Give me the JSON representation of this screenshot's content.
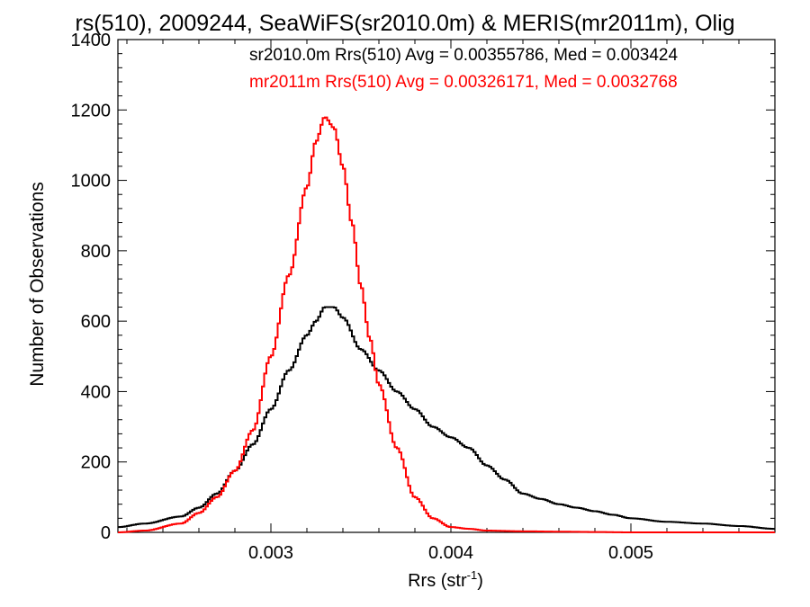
{
  "chart_data": {
    "type": "line",
    "title": "rs(510), 2009244, SeaWiFS(sr2010.0m) & MERIS(mr2011m), Olig",
    "xlabel": "Rrs (str",
    "xlabel_sup": "-1",
    "xlabel_end": ")",
    "ylabel": "Number of Observations",
    "xlim": [
      0.00215,
      0.0058
    ],
    "ylim": [
      0,
      1400
    ],
    "x_ticks": [
      0.003,
      0.004,
      0.005
    ],
    "x_tick_labels": [
      "0.003",
      "0.004",
      "0.005"
    ],
    "y_ticks": [
      0,
      200,
      400,
      600,
      800,
      1000,
      1200,
      1400
    ],
    "y_tick_labels": [
      "0",
      "200",
      "400",
      "600",
      "800",
      "1000",
      "1200",
      "1400"
    ],
    "legend_placement": "top-right",
    "annotations": [
      {
        "text": "sr2010.0m Rrs(510) Avg = 0.00355786, Med = 0.003424",
        "color": "#000000"
      },
      {
        "text": "mr2011m Rrs(510) Avg = 0.00326171, Med = 0.0032768",
        "color": "#ff0000"
      }
    ],
    "series": [
      {
        "name": "sr2010.0m Rrs(510)",
        "color": "#000000",
        "x": [
          0.00215,
          0.0023,
          0.0025,
          0.0026,
          0.0027,
          0.0028,
          0.0029,
          0.003,
          0.0031,
          0.0032,
          0.00325,
          0.0033,
          0.00335,
          0.0034,
          0.0035,
          0.0036,
          0.0037,
          0.0038,
          0.0039,
          0.004,
          0.0041,
          0.0042,
          0.0043,
          0.0044,
          0.0045,
          0.0046,
          0.0047,
          0.0048,
          0.0049,
          0.005,
          0.0052,
          0.0054,
          0.0056,
          0.0058
        ],
        "values": [
          15,
          25,
          45,
          70,
          110,
          175,
          250,
          350,
          460,
          560,
          600,
          640,
          640,
          610,
          520,
          460,
          400,
          350,
          300,
          270,
          240,
          190,
          150,
          110,
          95,
          80,
          70,
          60,
          50,
          40,
          30,
          25,
          18,
          10
        ]
      },
      {
        "name": "mr2011m Rrs(510)",
        "color": "#ff0000",
        "x": [
          0.00215,
          0.0023,
          0.0025,
          0.0026,
          0.0027,
          0.0028,
          0.0029,
          0.003,
          0.0031,
          0.0032,
          0.00325,
          0.0033,
          0.00335,
          0.0034,
          0.00345,
          0.0035,
          0.00355,
          0.0036,
          0.0037,
          0.0038,
          0.0039,
          0.004,
          0.0041,
          0.0042,
          0.0044,
          0.0046,
          0.0048,
          0.005,
          0.0054,
          0.0058
        ],
        "values": [
          0,
          5,
          25,
          55,
          100,
          175,
          290,
          500,
          730,
          980,
          1110,
          1180,
          1150,
          1040,
          880,
          700,
          550,
          420,
          240,
          100,
          40,
          15,
          10,
          5,
          3,
          2,
          1,
          0,
          0,
          0
        ]
      }
    ]
  }
}
